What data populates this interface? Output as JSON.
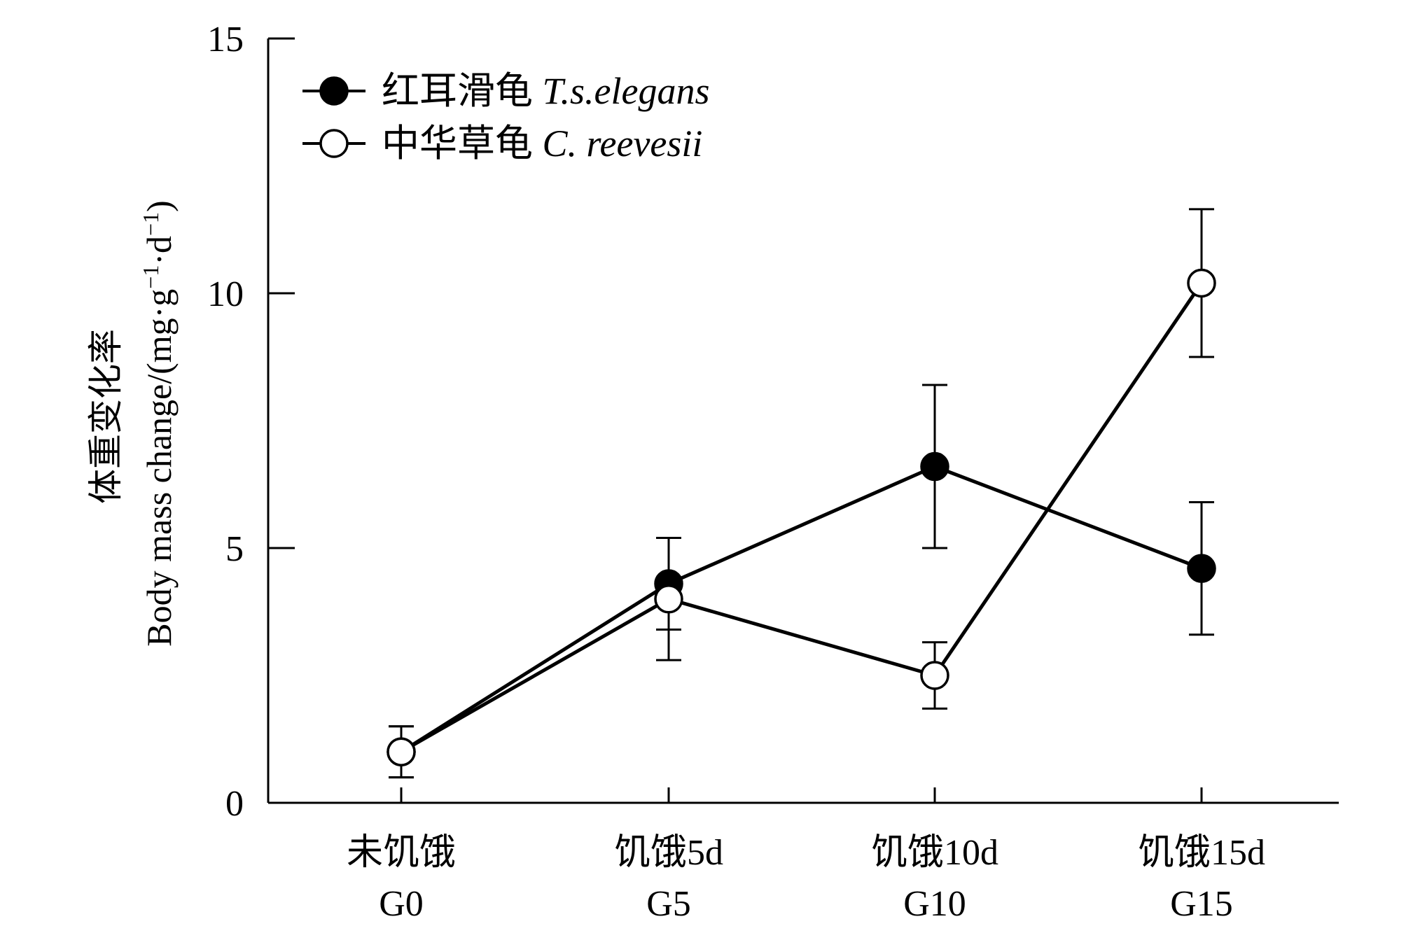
{
  "chart_data": {
    "type": "line",
    "categories": [
      {
        "zh": "未饥饿",
        "code": "G0"
      },
      {
        "zh": "饥饿5d",
        "code": "G5"
      },
      {
        "zh": "饥饿10d",
        "code": "G10"
      },
      {
        "zh": "饥饿15d",
        "code": "G15"
      }
    ],
    "ylabel_zh": "体重变化率",
    "ylabel_en": "Body mass change/(mg·g",
    "ylabel_sup1": "−1",
    "ylabel_mid": "·d",
    "ylabel_sup2": "−1",
    "ylabel_end": ")",
    "ylim": [
      0,
      15
    ],
    "yticks": [
      "0",
      "5",
      "10",
      "15"
    ],
    "ytick_values": [
      0,
      5,
      10,
      15
    ],
    "legend_position": "top-left",
    "grid": false,
    "series": [
      {
        "name_zh": "红耳滑龟",
        "name_latin": "T.s.elegans",
        "marker": "filled-circle",
        "color": "#000000",
        "values": [
          1.0,
          4.3,
          6.6,
          4.6
        ],
        "errors": [
          0.5,
          0.9,
          1.6,
          1.3
        ]
      },
      {
        "name_zh": "中华草龟",
        "name_latin": "C. reevesii",
        "marker": "open-circle",
        "color": "#000000",
        "values": [
          1.0,
          4.0,
          2.5,
          10.2
        ],
        "errors": [
          0.5,
          1.2,
          0.65,
          1.45
        ]
      }
    ]
  }
}
